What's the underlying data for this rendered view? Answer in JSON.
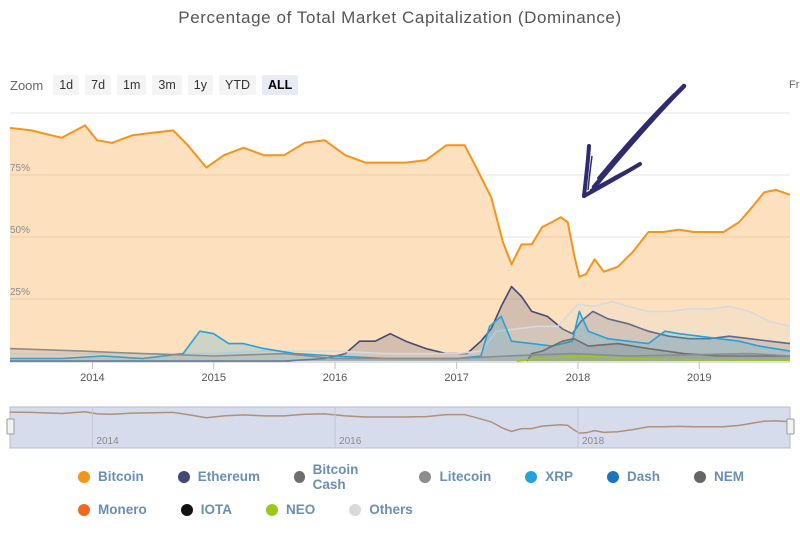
{
  "title": "Percentage of Total Market Capitalization (Dominance)",
  "zoom": {
    "label": "Zoom",
    "buttons": [
      "1d",
      "7d",
      "1m",
      "3m",
      "1y",
      "YTD",
      "ALL"
    ],
    "active": "ALL"
  },
  "from_label": "Fr",
  "colors": {
    "Bitcoin": "#f7931a",
    "Ethereum": "#434975",
    "Bitcoin Cash": "#6e6e6e",
    "Litecoin": "#8c8c8c",
    "XRP": "#23a3d9",
    "Dash": "#1c75bc",
    "NEM": "#666666",
    "Monero": "#f26822",
    "IOTA": "#111111",
    "NEO": "#9ac919",
    "Others": "#d9d9d9",
    "arrow": "#2e2b6e"
  },
  "legend": [
    [
      "Bitcoin",
      "Ethereum",
      "Bitcoin Cash",
      "Litecoin",
      "XRP",
      "Dash",
      "NEM"
    ],
    [
      "Monero",
      "IOTA",
      "NEO",
      "Others"
    ]
  ],
  "chart_data": {
    "type": "area",
    "title": "Percentage of Total Market Capitalization (Dominance)",
    "x_domain": [
      "2013-04-28",
      "2019-10-01"
    ],
    "ylim": [
      0,
      100
    ],
    "y_ticks": [
      "25%",
      "50%",
      "75%"
    ],
    "x_ticks": [
      "2014",
      "2015",
      "2016",
      "2017",
      "2018",
      "2019"
    ],
    "grid": true,
    "legend_position": "bottom",
    "navigator_ticks": [
      "2014",
      "2016",
      "2018"
    ],
    "series": [
      {
        "name": "Bitcoin",
        "points": [
          [
            "2013-04-28",
            94
          ],
          [
            "2013-07-01",
            93
          ],
          [
            "2013-10-01",
            90
          ],
          [
            "2013-12-10",
            95
          ],
          [
            "2014-01-15",
            89
          ],
          [
            "2014-03-01",
            88
          ],
          [
            "2014-05-01",
            91
          ],
          [
            "2014-07-01",
            92
          ],
          [
            "2014-09-01",
            93
          ],
          [
            "2014-10-15",
            87
          ],
          [
            "2014-12-10",
            78
          ],
          [
            "2015-02-01",
            83
          ],
          [
            "2015-04-01",
            86
          ],
          [
            "2015-06-01",
            83
          ],
          [
            "2015-08-01",
            83
          ],
          [
            "2015-10-01",
            88
          ],
          [
            "2015-12-01",
            89
          ],
          [
            "2016-02-01",
            83
          ],
          [
            "2016-04-01",
            80
          ],
          [
            "2016-06-01",
            80
          ],
          [
            "2016-08-01",
            80
          ],
          [
            "2016-10-01",
            81
          ],
          [
            "2016-12-01",
            87
          ],
          [
            "2017-01-25",
            87
          ],
          [
            "2017-03-01",
            78
          ],
          [
            "2017-04-15",
            66
          ],
          [
            "2017-05-20",
            48
          ],
          [
            "2017-06-15",
            39
          ],
          [
            "2017-07-15",
            47
          ],
          [
            "2017-08-15",
            47
          ],
          [
            "2017-09-15",
            54
          ],
          [
            "2017-10-15",
            56
          ],
          [
            "2017-11-10",
            58
          ],
          [
            "2017-12-01",
            56
          ],
          [
            "2017-12-20",
            43
          ],
          [
            "2018-01-05",
            34
          ],
          [
            "2018-01-25",
            35
          ],
          [
            "2018-02-20",
            41
          ],
          [
            "2018-03-20",
            36
          ],
          [
            "2018-05-01",
            38
          ],
          [
            "2018-06-15",
            44
          ],
          [
            "2018-08-01",
            52
          ],
          [
            "2018-09-15",
            52
          ],
          [
            "2018-11-01",
            53
          ],
          [
            "2018-12-15",
            52
          ],
          [
            "2019-02-01",
            52
          ],
          [
            "2019-03-15",
            52
          ],
          [
            "2019-05-01",
            56
          ],
          [
            "2019-06-15",
            63
          ],
          [
            "2019-07-15",
            68
          ],
          [
            "2019-08-20",
            69
          ],
          [
            "2019-10-01",
            67
          ]
        ]
      },
      {
        "name": "Ethereum",
        "points": [
          [
            "2013-04-28",
            0
          ],
          [
            "2015-08-01",
            0
          ],
          [
            "2015-12-01",
            1
          ],
          [
            "2016-02-01",
            3
          ],
          [
            "2016-03-15",
            8
          ],
          [
            "2016-05-01",
            8
          ],
          [
            "2016-06-15",
            11
          ],
          [
            "2016-08-01",
            8
          ],
          [
            "2016-10-01",
            5
          ],
          [
            "2016-12-01",
            3
          ],
          [
            "2017-02-01",
            3
          ],
          [
            "2017-03-15",
            8
          ],
          [
            "2017-04-15",
            13
          ],
          [
            "2017-05-15",
            22
          ],
          [
            "2017-06-15",
            30
          ],
          [
            "2017-07-15",
            26
          ],
          [
            "2017-08-15",
            20
          ],
          [
            "2017-10-01",
            18
          ],
          [
            "2017-11-15",
            13
          ],
          [
            "2017-12-15",
            11
          ],
          [
            "2018-01-10",
            16
          ],
          [
            "2018-02-15",
            20
          ],
          [
            "2018-04-01",
            17
          ],
          [
            "2018-06-01",
            15
          ],
          [
            "2018-08-01",
            12
          ],
          [
            "2018-10-01",
            10
          ],
          [
            "2018-12-01",
            9
          ],
          [
            "2019-02-01",
            9
          ],
          [
            "2019-04-01",
            10
          ],
          [
            "2019-06-01",
            9
          ],
          [
            "2019-08-01",
            8
          ],
          [
            "2019-10-01",
            7
          ]
        ]
      },
      {
        "name": "Others",
        "points": [
          [
            "2013-04-28",
            3
          ],
          [
            "2014-01-01",
            3
          ],
          [
            "2014-06-01",
            3
          ],
          [
            "2015-01-01",
            3
          ],
          [
            "2015-06-01",
            4
          ],
          [
            "2016-01-01",
            4
          ],
          [
            "2016-06-01",
            3
          ],
          [
            "2017-01-01",
            3
          ],
          [
            "2017-03-15",
            4
          ],
          [
            "2017-05-01",
            12
          ],
          [
            "2017-07-01",
            13
          ],
          [
            "2017-09-01",
            14
          ],
          [
            "2017-11-01",
            14
          ],
          [
            "2018-01-01",
            23
          ],
          [
            "2018-02-15",
            22
          ],
          [
            "2018-04-15",
            24
          ],
          [
            "2018-06-01",
            22
          ],
          [
            "2018-08-01",
            20
          ],
          [
            "2018-10-01",
            20
          ],
          [
            "2018-12-01",
            21
          ],
          [
            "2019-02-01",
            21
          ],
          [
            "2019-04-01",
            22
          ],
          [
            "2019-06-01",
            20
          ],
          [
            "2019-08-01",
            16
          ],
          [
            "2019-10-01",
            14
          ]
        ]
      },
      {
        "name": "XRP",
        "points": [
          [
            "2013-04-28",
            1
          ],
          [
            "2013-10-01",
            1
          ],
          [
            "2014-02-01",
            2
          ],
          [
            "2014-06-01",
            1
          ],
          [
            "2014-10-01",
            3
          ],
          [
            "2014-11-20",
            12
          ],
          [
            "2015-01-01",
            11
          ],
          [
            "2015-02-15",
            7
          ],
          [
            "2015-04-01",
            7
          ],
          [
            "2015-06-01",
            5
          ],
          [
            "2015-09-01",
            3
          ],
          [
            "2016-01-01",
            2
          ],
          [
            "2016-06-01",
            1
          ],
          [
            "2017-01-01",
            1
          ],
          [
            "2017-03-15",
            2
          ],
          [
            "2017-04-10",
            14
          ],
          [
            "2017-05-15",
            18
          ],
          [
            "2017-06-15",
            8
          ],
          [
            "2017-08-15",
            7
          ],
          [
            "2017-10-15",
            6
          ],
          [
            "2017-12-15",
            8
          ],
          [
            "2018-01-05",
            20
          ],
          [
            "2018-02-01",
            12
          ],
          [
            "2018-04-01",
            9
          ],
          [
            "2018-06-01",
            8
          ],
          [
            "2018-08-01",
            7
          ],
          [
            "2018-09-20",
            12
          ],
          [
            "2018-11-01",
            11
          ],
          [
            "2019-01-01",
            10
          ],
          [
            "2019-03-01",
            9
          ],
          [
            "2019-05-01",
            8
          ],
          [
            "2019-07-01",
            6
          ],
          [
            "2019-10-01",
            4
          ]
        ]
      },
      {
        "name": "Bitcoin Cash",
        "points": [
          [
            "2017-08-01",
            0
          ],
          [
            "2017-08-15",
            3
          ],
          [
            "2017-09-15",
            4
          ],
          [
            "2017-11-15",
            8
          ],
          [
            "2017-12-20",
            9
          ],
          [
            "2018-02-01",
            6
          ],
          [
            "2018-05-01",
            7
          ],
          [
            "2018-08-01",
            5
          ],
          [
            "2018-11-15",
            3
          ],
          [
            "2019-03-01",
            2
          ],
          [
            "2019-07-01",
            2
          ],
          [
            "2019-10-01",
            2
          ]
        ]
      },
      {
        "name": "Litecoin",
        "points": [
          [
            "2013-04-28",
            5
          ],
          [
            "2013-12-01",
            4
          ],
          [
            "2014-06-01",
            3
          ],
          [
            "2015-01-01",
            2
          ],
          [
            "2015-08-01",
            3
          ],
          [
            "2016-01-01",
            1
          ],
          [
            "2017-01-01",
            1
          ],
          [
            "2017-06-01",
            2
          ],
          [
            "2017-12-15",
            3
          ],
          [
            "2018-06-01",
            2
          ],
          [
            "2019-06-01",
            3
          ],
          [
            "2019-10-01",
            2
          ]
        ]
      },
      {
        "name": "NEO",
        "points": [
          [
            "2017-07-01",
            0
          ],
          [
            "2017-09-01",
            1
          ],
          [
            "2018-01-15",
            2
          ],
          [
            "2018-06-01",
            1
          ],
          [
            "2019-01-01",
            0.5
          ],
          [
            "2019-10-01",
            0.4
          ]
        ]
      }
    ],
    "annotation": "hand-drawn arrow pointing down-left toward the January 2018 Bitcoin dominance low"
  }
}
